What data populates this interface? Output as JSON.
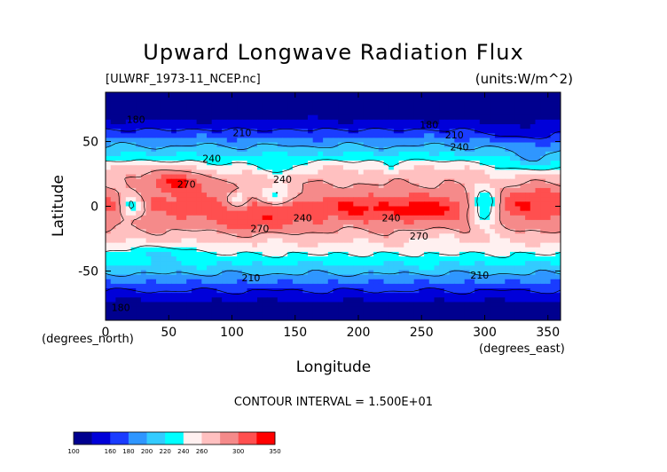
{
  "chart_data": {
    "type": "heatmap",
    "title": "Upward Longwave Radiation Flux",
    "file_label": "[ULWRF_1973-11_NCEP.nc]",
    "units_label": "(units:W/m^2)",
    "xlabel": "Longitude",
    "ylabel": "Latitude",
    "x_unit_label": "(degrees_east)",
    "y_unit_label": "(degrees_north)",
    "xlim": [
      0,
      360
    ],
    "ylim": [
      -90,
      90
    ],
    "x_ticks": [
      "0",
      "50",
      "100",
      "150",
      "200",
      "250",
      "300",
      "350"
    ],
    "y_ticks": [
      "50",
      "0",
      "-50"
    ],
    "contour_interval_text": "CONTOUR INTERVAL = 1.500E+01",
    "contour_labels": [
      {
        "text": "180",
        "lon": 24,
        "lat": 67
      },
      {
        "text": "180",
        "lon": 256,
        "lat": 63
      },
      {
        "text": "180",
        "lon": 12,
        "lat": -78
      },
      {
        "text": "210",
        "lon": 108,
        "lat": 57
      },
      {
        "text": "210",
        "lon": 276,
        "lat": 55
      },
      {
        "text": "210",
        "lon": 115,
        "lat": -55
      },
      {
        "text": "210",
        "lon": 296,
        "lat": -53
      },
      {
        "text": "240",
        "lon": 84,
        "lat": 37
      },
      {
        "text": "240",
        "lon": 280,
        "lat": 46
      },
      {
        "text": "240",
        "lon": 140,
        "lat": 21
      },
      {
        "text": "240",
        "lon": 156,
        "lat": -9
      },
      {
        "text": "240",
        "lon": 226,
        "lat": -9
      },
      {
        "text": "270",
        "lon": 64,
        "lat": 17
      },
      {
        "text": "270",
        "lon": 122,
        "lat": -17
      },
      {
        "text": "270",
        "lon": 248,
        "lat": -23
      }
    ],
    "colorbar": {
      "ticks": [
        "100",
        "160",
        "180",
        "200",
        "220",
        "240",
        "260",
        "300",
        "350"
      ],
      "colors": [
        "#00008f",
        "#0000d9",
        "#1a3cff",
        "#2f96ff",
        "#33cbff",
        "#00ffff",
        "#fff0f0",
        "#ffc0c0",
        "#f58a8a",
        "#ff4f4f",
        "#ff0000"
      ]
    }
  }
}
